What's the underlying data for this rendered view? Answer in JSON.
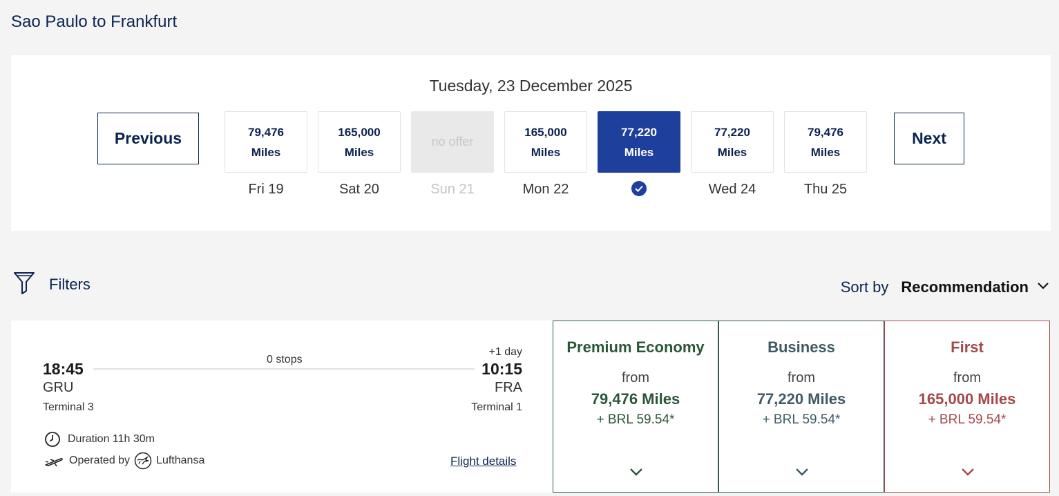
{
  "page_title": "Sao Paulo to Frankfurt",
  "date_selector": {
    "heading": "Tuesday, 23 December 2025",
    "previous_label": "Previous",
    "next_label": "Next",
    "days": [
      {
        "miles": "79,476",
        "unit": "Miles",
        "label": "Fri 19"
      },
      {
        "miles": "165,000",
        "unit": "Miles",
        "label": "Sat 20"
      },
      {
        "no_offer": "no offer",
        "label": "Sun 21"
      },
      {
        "miles": "165,000",
        "unit": "Miles",
        "label": "Mon 22"
      },
      {
        "miles": "77,220",
        "unit": "Miles",
        "label": "Tue 23"
      },
      {
        "miles": "77,220",
        "unit": "Miles",
        "label": "Wed 24"
      },
      {
        "miles": "79,476",
        "unit": "Miles",
        "label": "Thu 25"
      }
    ]
  },
  "filters_label": "Filters",
  "sort": {
    "label": "Sort by",
    "value": "Recommendation"
  },
  "flight": {
    "departure_time": "18:45",
    "departure_code": "GRU",
    "departure_terminal": "Terminal 3",
    "stops": "0 stops",
    "plus_day": "+1 day",
    "arrival_time": "10:15",
    "arrival_code": "FRA",
    "arrival_terminal": "Terminal 1",
    "duration": "Duration 11h 30m",
    "operated_by": "Operated by",
    "airline": "Lufthansa",
    "details_link": "Flight details"
  },
  "fares": [
    {
      "cabin": "Premium Economy",
      "from": "from",
      "miles": "79,476 Miles",
      "tax": "+ BRL 59.54*",
      "color": "#2b5638"
    },
    {
      "cabin": "Business",
      "from": "from",
      "miles": "77,220 Miles",
      "tax": "+ BRL 59.54*",
      "color": "#3f5a66"
    },
    {
      "cabin": "First",
      "from": "from",
      "miles": "165,000 Miles",
      "tax": "+ BRL 59.54*",
      "color": "#a5484b"
    }
  ],
  "colors": {
    "brand": "#0b2350",
    "selected": "#1e3f9b"
  }
}
